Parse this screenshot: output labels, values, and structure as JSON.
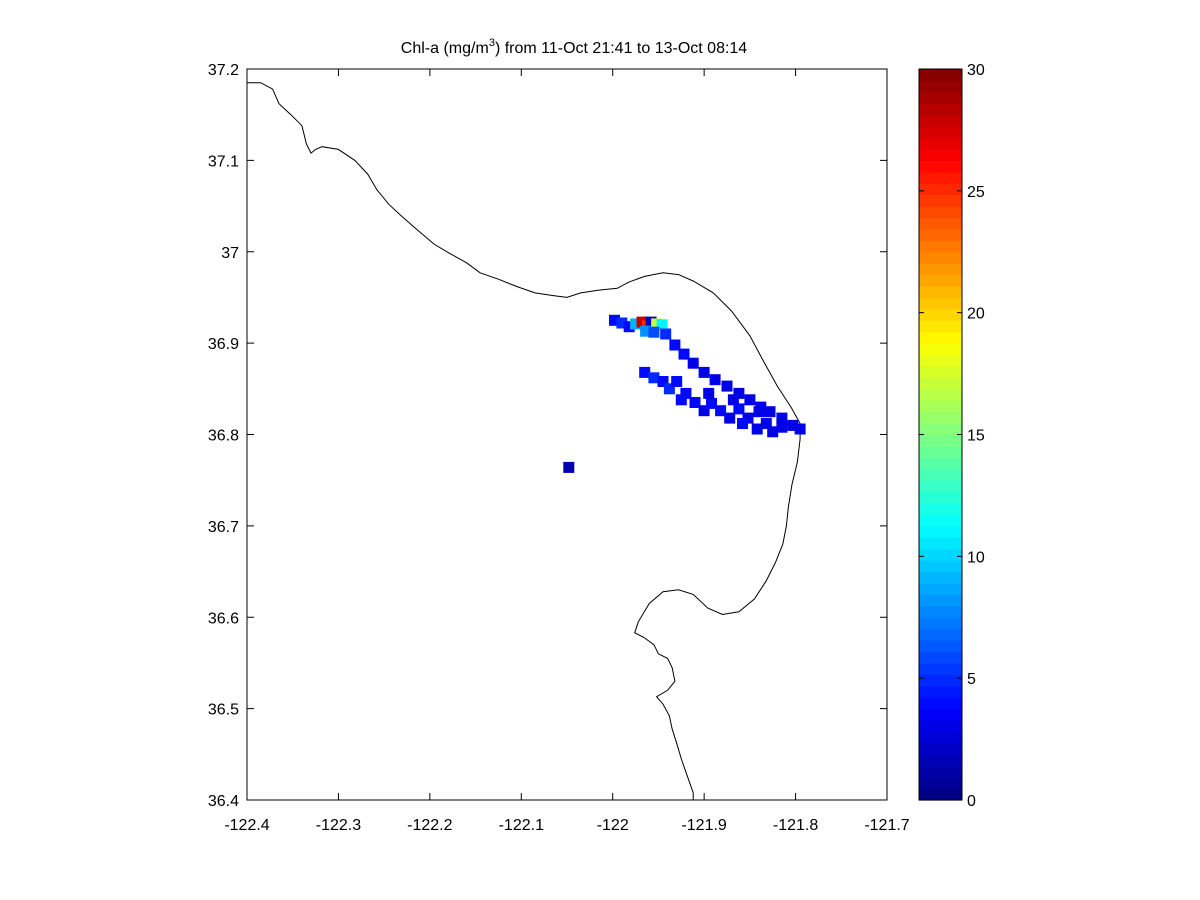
{
  "title": {
    "prefix": "Chl-a (mg/m",
    "superscript": "3",
    "suffix": ") from 11-Oct 21:41 to 13-Oct 08:14"
  },
  "chart_data": {
    "type": "scatter",
    "title": "Chl-a (mg/m3) from 11-Oct 21:41 to 13-Oct 08:14",
    "xlim": [
      -122.4,
      -121.7
    ],
    "ylim": [
      36.4,
      37.2
    ],
    "x_ticks": [
      "-122.4",
      "-122.3",
      "-122.2",
      "-122.1",
      "-122",
      "-121.9",
      "-121.8",
      "-121.7"
    ],
    "y_ticks": [
      "36.4",
      "36.5",
      "36.6",
      "36.7",
      "36.8",
      "36.9",
      "37",
      "37.1",
      "37.2"
    ],
    "colorbar": {
      "range": [
        0,
        30
      ],
      "ticks": [
        "0",
        "5",
        "10",
        "15",
        "20",
        "25",
        "30"
      ],
      "colormap": "jet"
    },
    "coastline": [
      [
        -122.4,
        37.185
      ],
      [
        -122.385,
        37.185
      ],
      [
        -122.372,
        37.178
      ],
      [
        -122.365,
        37.162
      ],
      [
        -122.352,
        37.15
      ],
      [
        -122.34,
        37.138
      ],
      [
        -122.335,
        37.118
      ],
      [
        -122.33,
        37.108
      ],
      [
        -122.325,
        37.112
      ],
      [
        -122.318,
        37.115
      ],
      [
        -122.3,
        37.112
      ],
      [
        -122.282,
        37.1
      ],
      [
        -122.268,
        37.085
      ],
      [
        -122.258,
        37.068
      ],
      [
        -122.245,
        37.052
      ],
      [
        -122.232,
        37.04
      ],
      [
        -122.215,
        37.025
      ],
      [
        -122.195,
        37.008
      ],
      [
        -122.178,
        36.998
      ],
      [
        -122.16,
        36.988
      ],
      [
        -122.145,
        36.977
      ],
      [
        -122.125,
        36.97
      ],
      [
        -122.105,
        36.962
      ],
      [
        -122.085,
        36.955
      ],
      [
        -122.065,
        36.952
      ],
      [
        -122.05,
        36.95
      ],
      [
        -122.035,
        36.955
      ],
      [
        -122.015,
        36.958
      ],
      [
        -121.995,
        36.96
      ],
      [
        -121.982,
        36.967
      ],
      [
        -121.965,
        36.973
      ],
      [
        -121.945,
        36.977
      ],
      [
        -121.928,
        36.975
      ],
      [
        -121.912,
        36.968
      ],
      [
        -121.89,
        36.955
      ],
      [
        -121.87,
        36.935
      ],
      [
        -121.85,
        36.908
      ],
      [
        -121.835,
        36.88
      ],
      [
        -121.82,
        36.853
      ],
      [
        -121.805,
        36.83
      ],
      [
        -121.795,
        36.812
      ],
      [
        -121.795,
        36.795
      ],
      [
        -121.798,
        36.77
      ],
      [
        -121.804,
        36.745
      ],
      [
        -121.808,
        36.72
      ],
      [
        -121.81,
        36.7
      ],
      [
        -121.814,
        36.68
      ],
      [
        -121.822,
        36.66
      ],
      [
        -121.832,
        36.64
      ],
      [
        -121.845,
        36.62
      ],
      [
        -121.862,
        36.606
      ],
      [
        -121.88,
        36.603
      ],
      [
        -121.896,
        36.61
      ],
      [
        -121.912,
        36.625
      ],
      [
        -121.928,
        36.63
      ],
      [
        -121.945,
        36.628
      ],
      [
        -121.96,
        36.615
      ],
      [
        -121.972,
        36.595
      ],
      [
        -121.976,
        36.583
      ],
      [
        -121.966,
        36.578
      ],
      [
        -121.955,
        36.57
      ],
      [
        -121.95,
        36.56
      ],
      [
        -121.94,
        36.555
      ],
      [
        -121.935,
        36.545
      ],
      [
        -121.932,
        36.53
      ],
      [
        -121.94,
        36.52
      ],
      [
        -121.952,
        36.513
      ],
      [
        -121.945,
        36.505
      ],
      [
        -121.938,
        36.492
      ],
      [
        -121.935,
        36.478
      ],
      [
        -121.93,
        36.462
      ],
      [
        -121.925,
        36.445
      ],
      [
        -121.918,
        36.425
      ],
      [
        -121.912,
        36.408
      ],
      [
        -121.912,
        36.4
      ]
    ],
    "points": [
      {
        "x": -122.048,
        "y": 36.764,
        "v": 1.5
      },
      {
        "x": -121.998,
        "y": 36.925,
        "v": 4
      },
      {
        "x": -121.99,
        "y": 36.922,
        "v": 5
      },
      {
        "x": -121.982,
        "y": 36.918,
        "v": 4
      },
      {
        "x": -121.975,
        "y": 36.921,
        "v": 9
      },
      {
        "x": -121.968,
        "y": 36.923,
        "v": 28
      },
      {
        "x": -121.962,
        "y": 36.919,
        "v": 25
      },
      {
        "x": -121.958,
        "y": 36.923,
        "v": 2
      },
      {
        "x": -121.952,
        "y": 36.921,
        "v": 17
      },
      {
        "x": -121.946,
        "y": 36.92,
        "v": 11
      },
      {
        "x": -121.964,
        "y": 36.913,
        "v": 8
      },
      {
        "x": -121.955,
        "y": 36.912,
        "v": 6
      },
      {
        "x": -121.942,
        "y": 36.91,
        "v": 5
      },
      {
        "x": -121.932,
        "y": 36.898,
        "v": 4
      },
      {
        "x": -121.922,
        "y": 36.888,
        "v": 4
      },
      {
        "x": -121.912,
        "y": 36.878,
        "v": 3
      },
      {
        "x": -121.9,
        "y": 36.868,
        "v": 3
      },
      {
        "x": -121.888,
        "y": 36.86,
        "v": 3
      },
      {
        "x": -121.875,
        "y": 36.853,
        "v": 3
      },
      {
        "x": -121.862,
        "y": 36.845,
        "v": 3
      },
      {
        "x": -121.85,
        "y": 36.838,
        "v": 3
      },
      {
        "x": -121.838,
        "y": 36.83,
        "v": 3
      },
      {
        "x": -121.828,
        "y": 36.825,
        "v": 3
      },
      {
        "x": -121.815,
        "y": 36.818,
        "v": 3
      },
      {
        "x": -121.803,
        "y": 36.81,
        "v": 3
      },
      {
        "x": -121.795,
        "y": 36.806,
        "v": 3
      },
      {
        "x": -121.965,
        "y": 36.868,
        "v": 4
      },
      {
        "x": -121.955,
        "y": 36.862,
        "v": 5
      },
      {
        "x": -121.945,
        "y": 36.858,
        "v": 4
      },
      {
        "x": -121.938,
        "y": 36.85,
        "v": 5
      },
      {
        "x": -121.93,
        "y": 36.858,
        "v": 4
      },
      {
        "x": -121.92,
        "y": 36.845,
        "v": 4
      },
      {
        "x": -121.91,
        "y": 36.835,
        "v": 4
      },
      {
        "x": -121.9,
        "y": 36.826,
        "v": 3
      },
      {
        "x": -121.892,
        "y": 36.834,
        "v": 4
      },
      {
        "x": -121.882,
        "y": 36.826,
        "v": 4
      },
      {
        "x": -121.872,
        "y": 36.818,
        "v": 3
      },
      {
        "x": -121.862,
        "y": 36.828,
        "v": 4
      },
      {
        "x": -121.852,
        "y": 36.818,
        "v": 3
      },
      {
        "x": -121.842,
        "y": 36.806,
        "v": 3
      },
      {
        "x": -121.832,
        "y": 36.812,
        "v": 3
      },
      {
        "x": -121.825,
        "y": 36.803,
        "v": 3
      },
      {
        "x": -121.815,
        "y": 36.808,
        "v": 3
      },
      {
        "x": -121.925,
        "y": 36.838,
        "v": 4
      },
      {
        "x": -121.895,
        "y": 36.845,
        "v": 3
      },
      {
        "x": -121.868,
        "y": 36.838,
        "v": 3
      },
      {
        "x": -121.84,
        "y": 36.825,
        "v": 3
      },
      {
        "x": -121.858,
        "y": 36.812,
        "v": 4
      }
    ]
  }
}
